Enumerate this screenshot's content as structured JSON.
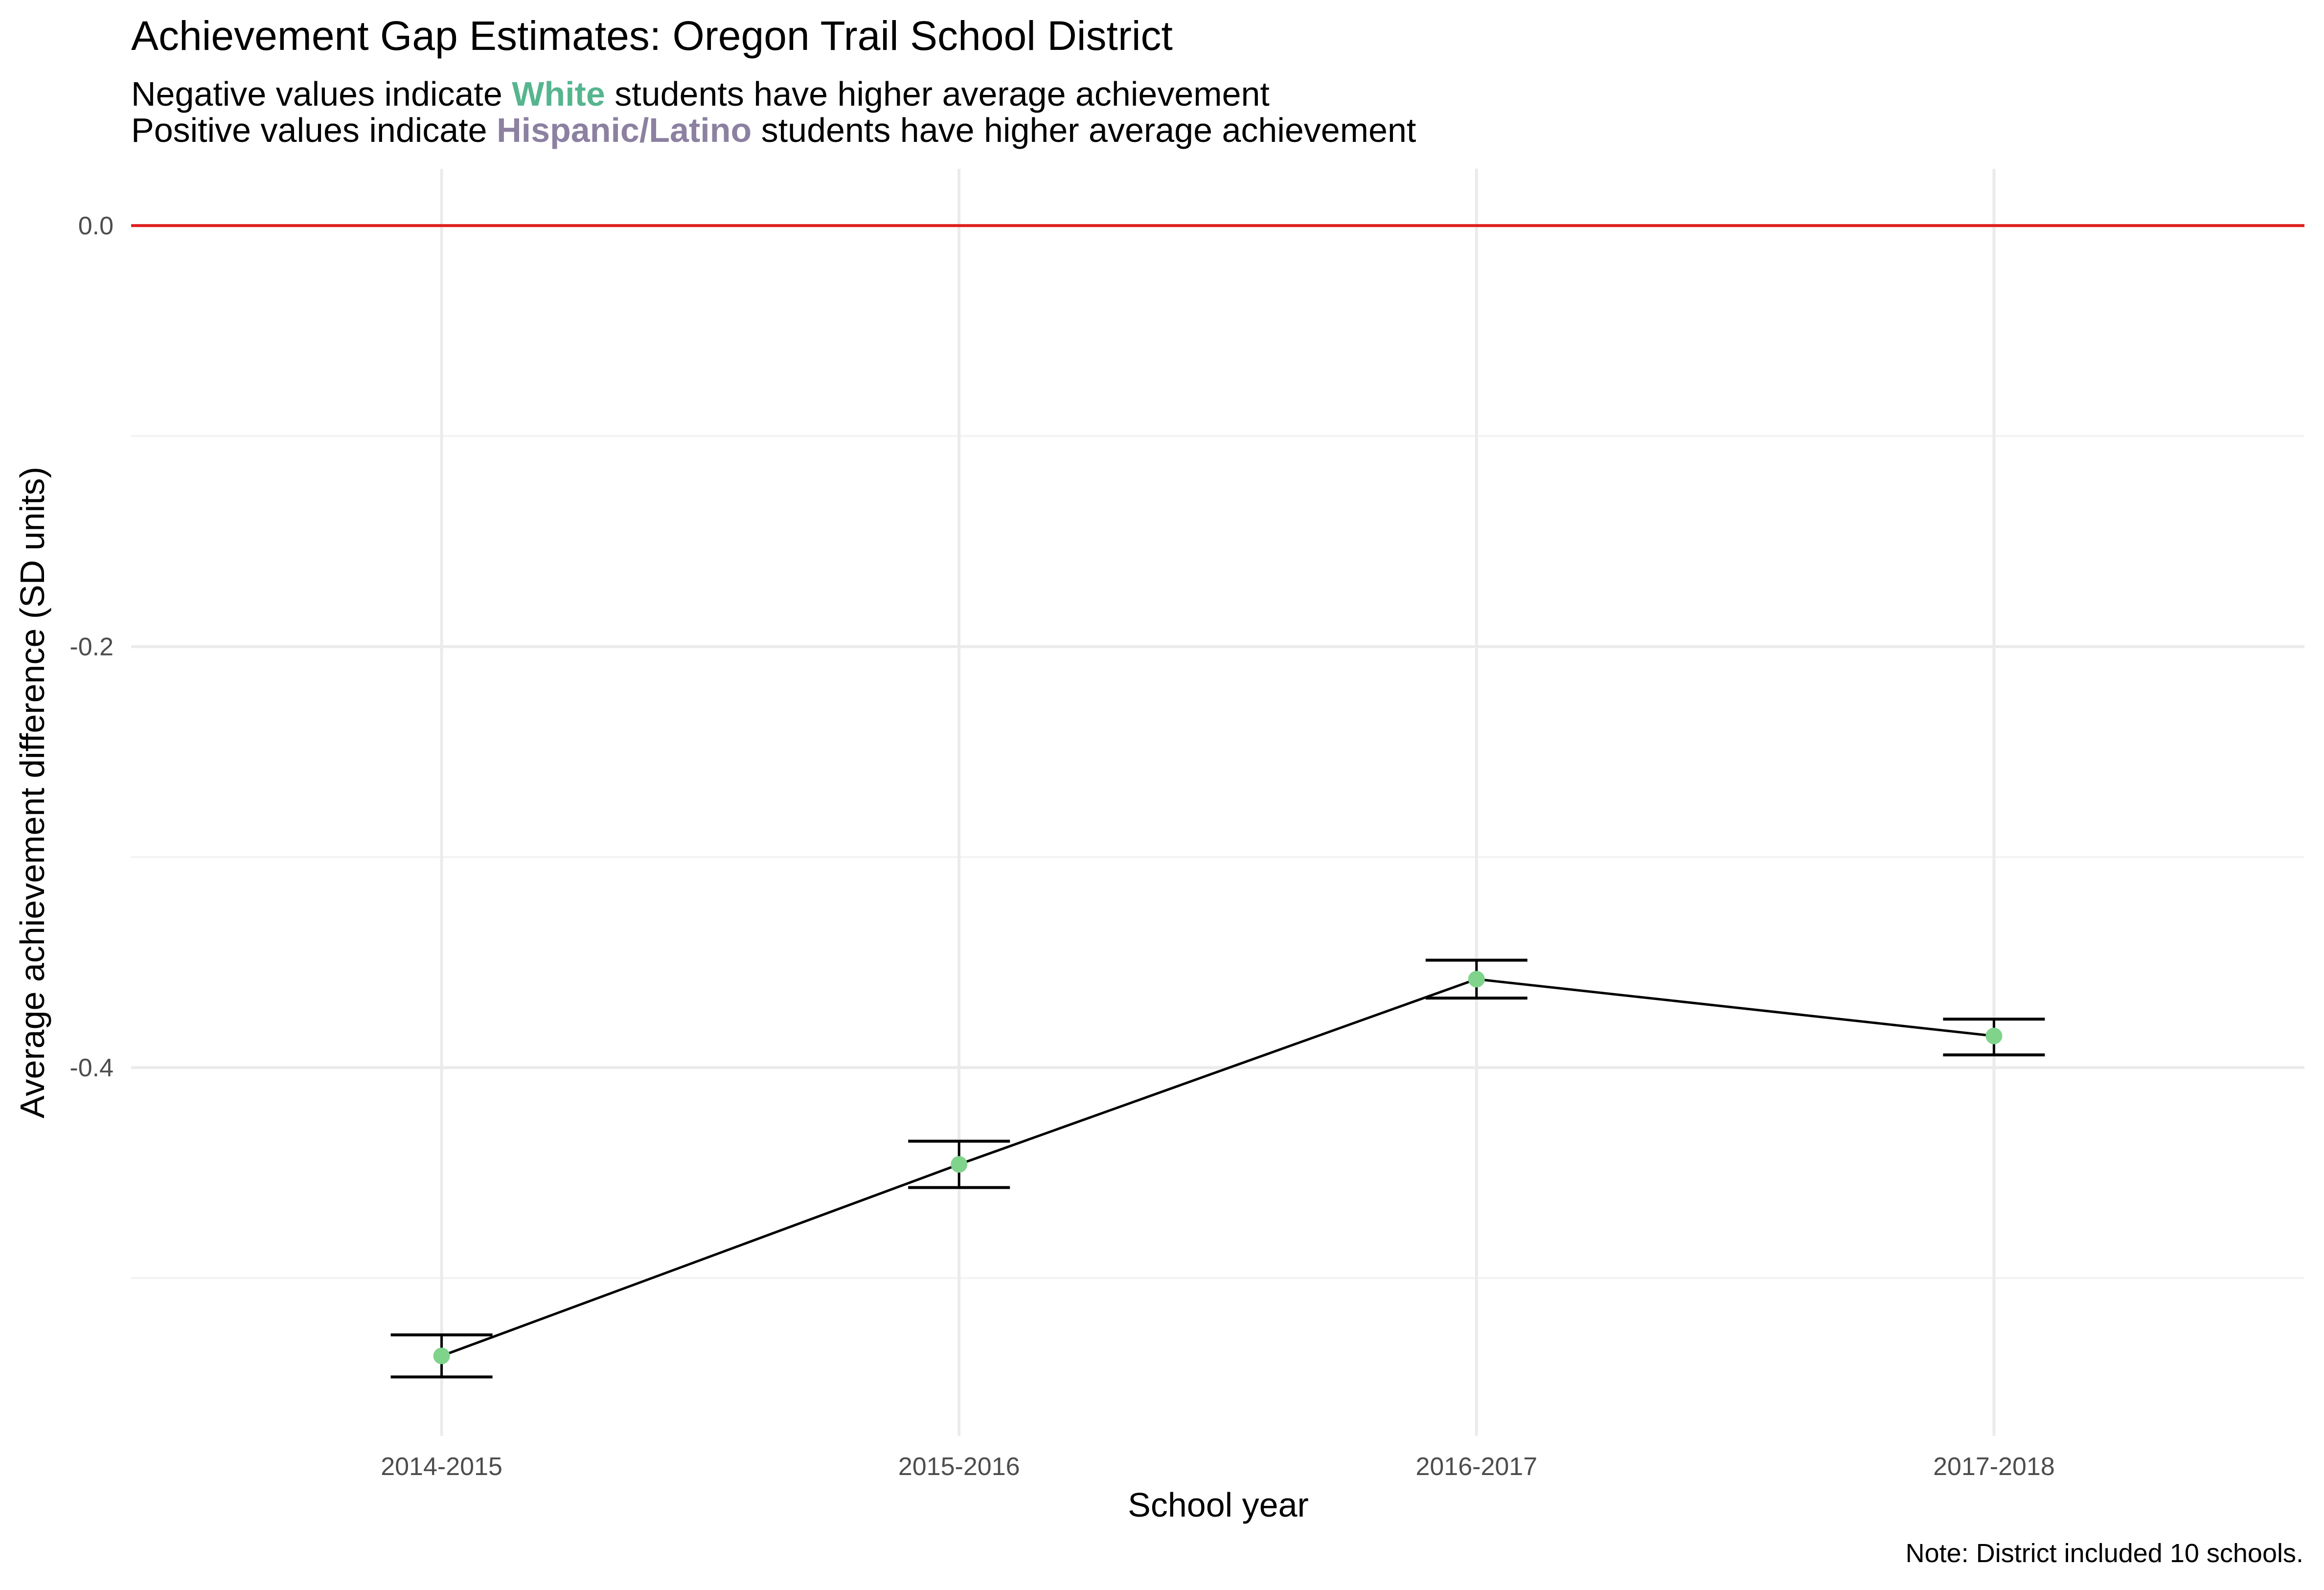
{
  "chart_data": {
    "type": "line",
    "title": "Achievement Gap Estimates: Oregon Trail School District",
    "subtitle": {
      "line1": {
        "before": "Negative values indicate ",
        "highlight": "White",
        "after": " students have higher average achievement"
      },
      "line2": {
        "before": "Positive values indicate ",
        "highlight": "Hispanic/Latino",
        "after": " students have higher average achievement"
      }
    },
    "xlabel": "School year",
    "ylabel": "Average achievement difference (SD units)",
    "categories": [
      "2014-2015",
      "2015-2016",
      "2016-2017",
      "2017-2018"
    ],
    "values": [
      -0.537,
      -0.446,
      -0.358,
      -0.385
    ],
    "error_low": [
      -0.547,
      -0.457,
      -0.367,
      -0.394
    ],
    "error_high": [
      -0.527,
      -0.435,
      -0.349,
      -0.377
    ],
    "reference_line": 0.0,
    "ylim": [
      -0.575,
      0.027
    ],
    "yticks": [
      0.0,
      -0.2,
      -0.4
    ],
    "ytick_labels": [
      "0.0",
      "-0.2",
      "-0.4"
    ],
    "grid": true,
    "caption": "Note: District included 10 schools."
  },
  "colors": {
    "point": "#7fd38a",
    "white_highlight": "#56b58f",
    "hispanic_highlight": "#8c81a1",
    "reference_line": "#e02020",
    "line": "#000000",
    "grid_major": "#ebebeb",
    "grid_minor": "#f3f3f3"
  }
}
